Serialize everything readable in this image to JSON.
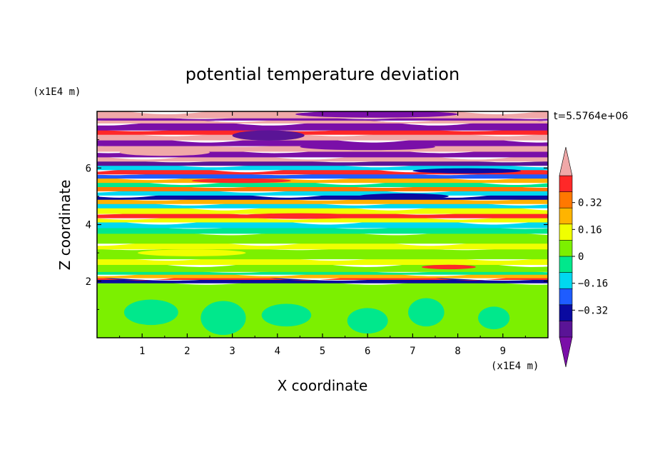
{
  "chart_data": {
    "type": "heatmap",
    "title": "potential temperature deviation",
    "xlabel": "X coordinate",
    "ylabel": "Z coordinate",
    "x_unit": "(x1E4 m)",
    "y_unit": "(x1E4 m)",
    "time_label": "t=5.5764e+06",
    "xlim": [
      0,
      10
    ],
    "ylim": [
      0,
      8
    ],
    "x_ticks": [
      1,
      2,
      3,
      4,
      5,
      6,
      7,
      8,
      9
    ],
    "y_ticks": [
      2,
      4,
      6
    ],
    "colorbar": {
      "levels": [
        -0.48,
        -0.4,
        -0.32,
        -0.24,
        -0.16,
        -0.08,
        0,
        0.08,
        0.16,
        0.24,
        0.32,
        0.4,
        0.48
      ],
      "tick_labels": [
        "0.32",
        "0.16",
        "0",
        "−0.16",
        "−0.32"
      ],
      "tick_values": [
        0.32,
        0.16,
        0,
        -0.16,
        -0.32
      ],
      "colors": [
        "#7a0fa8",
        "#5a1496",
        "#0a0aa0",
        "#1e5cff",
        "#00d8f0",
        "#00e88c",
        "#7cf000",
        "#f0ff00",
        "#ffb400",
        "#ff7800",
        "#ff2828",
        "#f0a8a8"
      ]
    },
    "bands": [
      {
        "z": 0.0,
        "h": 1.95,
        "c": 6
      },
      {
        "z": 1.95,
        "h": 0.12,
        "c": 2
      },
      {
        "z": 2.07,
        "h": 0.06,
        "c": 10
      },
      {
        "z": 2.13,
        "h": 0.12,
        "c": 8
      },
      {
        "z": 2.25,
        "h": 0.1,
        "c": 5
      },
      {
        "z": 2.35,
        "h": 0.25,
        "c": 6
      },
      {
        "z": 2.6,
        "h": 0.2,
        "c": 7
      },
      {
        "z": 2.8,
        "h": 0.35,
        "c": 6
      },
      {
        "z": 3.15,
        "h": 0.2,
        "c": 7
      },
      {
        "z": 3.35,
        "h": 0.35,
        "c": 6
      },
      {
        "z": 3.7,
        "h": 0.2,
        "c": 5
      },
      {
        "z": 3.9,
        "h": 0.2,
        "c": 4
      },
      {
        "z": 4.1,
        "h": 0.15,
        "c": 7
      },
      {
        "z": 4.25,
        "h": 0.15,
        "c": 10
      },
      {
        "z": 4.4,
        "h": 0.2,
        "c": 7
      },
      {
        "z": 4.6,
        "h": 0.15,
        "c": 4
      },
      {
        "z": 4.75,
        "h": 0.15,
        "c": 8
      },
      {
        "z": 4.9,
        "h": 0.15,
        "c": 2
      },
      {
        "z": 5.05,
        "h": 0.15,
        "c": 4
      },
      {
        "z": 5.2,
        "h": 0.15,
        "c": 9
      },
      {
        "z": 5.35,
        "h": 0.15,
        "c": 5
      },
      {
        "z": 5.5,
        "h": 0.15,
        "c": 8
      },
      {
        "z": 5.65,
        "h": 0.15,
        "c": 3
      },
      {
        "z": 5.8,
        "h": 0.15,
        "c": 10
      },
      {
        "z": 5.95,
        "h": 0.15,
        "c": 4
      },
      {
        "z": 6.1,
        "h": 0.15,
        "c": 1
      },
      {
        "z": 6.25,
        "h": 0.15,
        "c": 11
      },
      {
        "z": 6.4,
        "h": 0.2,
        "c": 0
      },
      {
        "z": 6.6,
        "h": 0.2,
        "c": 11
      },
      {
        "z": 6.8,
        "h": 0.2,
        "c": 0
      },
      {
        "z": 7.0,
        "h": 0.2,
        "c": 11
      },
      {
        "z": 7.2,
        "h": 0.15,
        "c": 10
      },
      {
        "z": 7.35,
        "h": 0.25,
        "c": 0
      },
      {
        "z": 7.6,
        "h": 0.1,
        "c": 11
      },
      {
        "z": 7.7,
        "h": 0.08,
        "c": 0
      },
      {
        "z": 7.78,
        "h": 0.22,
        "c": 11
      }
    ],
    "blobs": [
      {
        "x": 1.2,
        "z": 0.9,
        "rx": 0.6,
        "rz": 0.45,
        "c": 5
      },
      {
        "x": 2.8,
        "z": 0.7,
        "rx": 0.5,
        "rz": 0.6,
        "c": 5
      },
      {
        "x": 4.2,
        "z": 0.8,
        "rx": 0.55,
        "rz": 0.4,
        "c": 5
      },
      {
        "x": 6.0,
        "z": 0.6,
        "rx": 0.45,
        "rz": 0.45,
        "c": 5
      },
      {
        "x": 7.3,
        "z": 0.9,
        "rx": 0.4,
        "rz": 0.5,
        "c": 5
      },
      {
        "x": 8.8,
        "z": 0.7,
        "rx": 0.35,
        "rz": 0.4,
        "c": 5
      },
      {
        "x": 2.1,
        "z": 3.0,
        "rx": 1.2,
        "rz": 0.12,
        "c": 7
      },
      {
        "x": 7.8,
        "z": 2.5,
        "rx": 0.6,
        "rz": 0.08,
        "c": 10
      },
      {
        "x": 4.5,
        "z": 4.3,
        "rx": 1.4,
        "rz": 0.1,
        "c": 10
      },
      {
        "x": 6.8,
        "z": 5.0,
        "rx": 1.0,
        "rz": 0.1,
        "c": 2
      },
      {
        "x": 3.2,
        "z": 5.55,
        "rx": 1.1,
        "rz": 0.08,
        "c": 10
      },
      {
        "x": 8.2,
        "z": 5.9,
        "rx": 1.2,
        "rz": 0.09,
        "c": 2
      },
      {
        "x": 1.5,
        "z": 6.55,
        "rx": 1.0,
        "rz": 0.12,
        "c": 11
      },
      {
        "x": 6.0,
        "z": 6.75,
        "rx": 1.5,
        "rz": 0.12,
        "c": 0
      },
      {
        "x": 3.8,
        "z": 7.15,
        "rx": 0.8,
        "rz": 0.18,
        "c": 1
      },
      {
        "x": 6.2,
        "z": 7.9,
        "rx": 1.8,
        "rz": 0.12,
        "c": 0
      }
    ]
  }
}
